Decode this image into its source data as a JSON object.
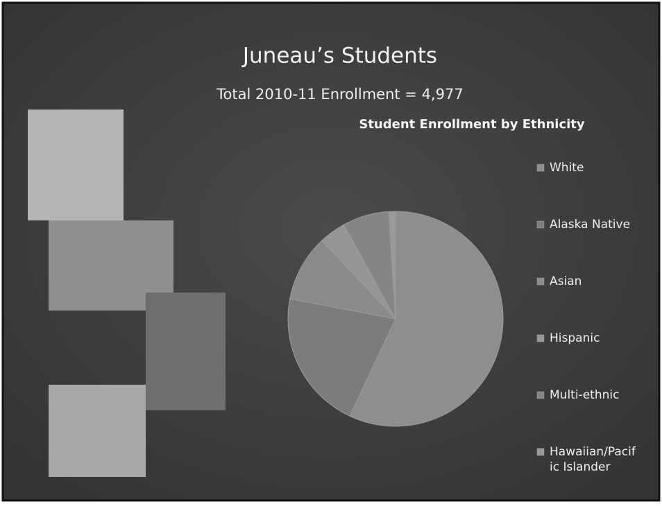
{
  "header": {
    "title": "Juneau’s Students",
    "subtitle": "Total 2010-11 Enrollment = 4,977"
  },
  "chart_data": {
    "type": "pie",
    "title": "Student Enrollment by Ethnicity",
    "categories": [
      "White",
      "Alaska Native",
      "Asian",
      "Hispanic",
      "Multi-ethnic",
      "Hawaiian/Pacific Islander"
    ],
    "values": [
      57,
      21,
      10,
      4,
      7,
      1
    ],
    "colors": [
      "#8e8e8e",
      "#7c7c7c",
      "#8a8a8a",
      "#969696",
      "#858585",
      "#9a9a9a"
    ],
    "legend": "right"
  }
}
